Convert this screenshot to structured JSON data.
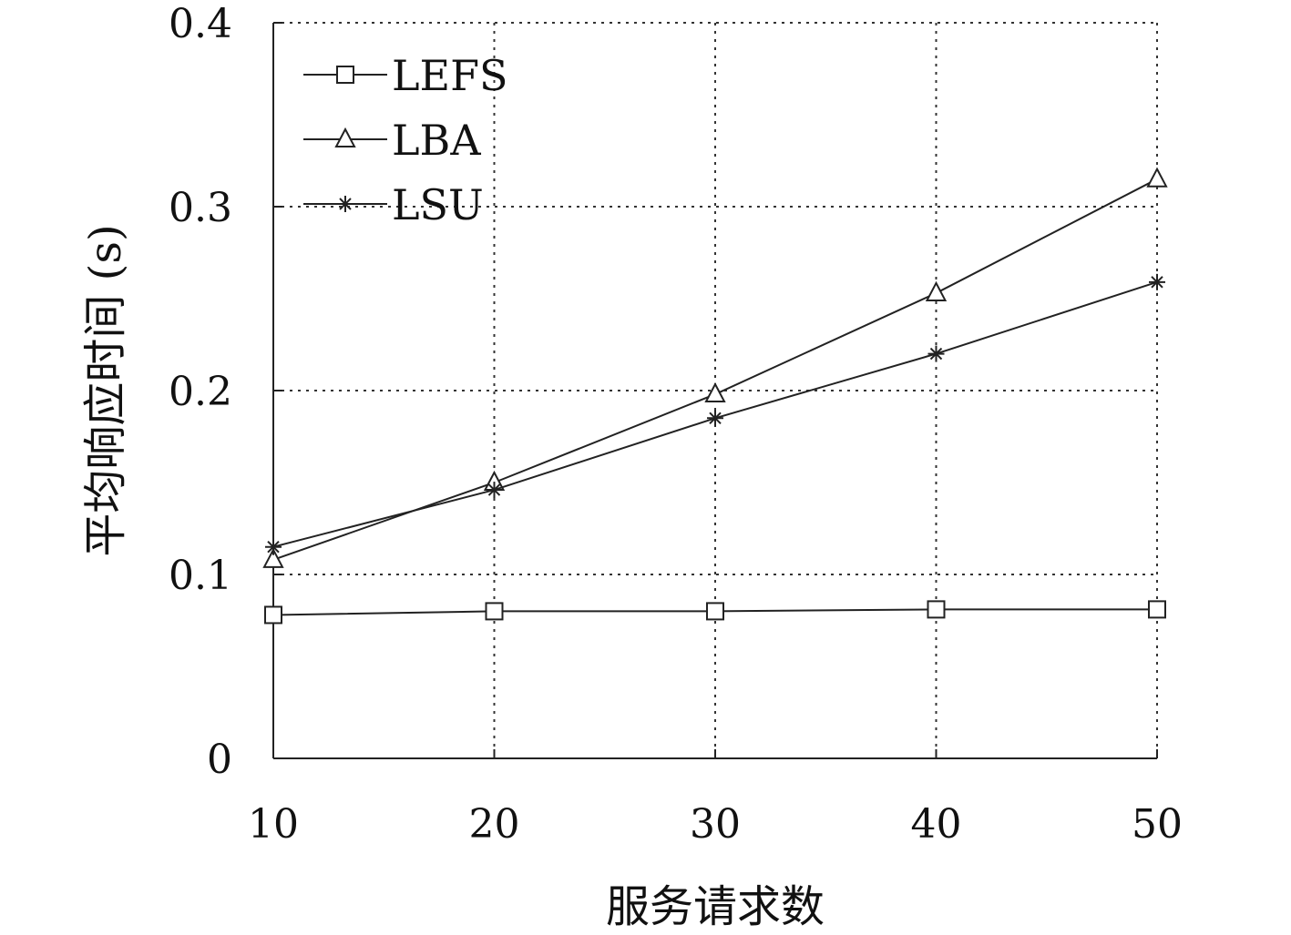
{
  "chart_data": {
    "type": "line",
    "title": "",
    "xlabel": "服务请求数",
    "ylabel": "平均响应时间 (s)",
    "x": [
      10,
      20,
      30,
      40,
      50
    ],
    "xlim": [
      10,
      50
    ],
    "ylim": [
      0,
      0.4
    ],
    "xticks": [
      "10",
      "20",
      "30",
      "40",
      "50"
    ],
    "yticks": [
      "0",
      "0.1",
      "0.2",
      "0.3",
      "0.4"
    ],
    "grid": true,
    "legend_position": "top-left",
    "series": [
      {
        "name": "LEFS",
        "marker": "square",
        "values": [
          0.078,
          0.08,
          0.08,
          0.081,
          0.081
        ]
      },
      {
        "name": "LBA",
        "marker": "triangle",
        "values": [
          0.108,
          0.15,
          0.198,
          0.253,
          0.315
        ]
      },
      {
        "name": "LSU",
        "marker": "star",
        "values": [
          0.115,
          0.146,
          0.185,
          0.22,
          0.259
        ]
      }
    ],
    "colors": {
      "line": "#222222",
      "background": "#ffffff"
    }
  }
}
